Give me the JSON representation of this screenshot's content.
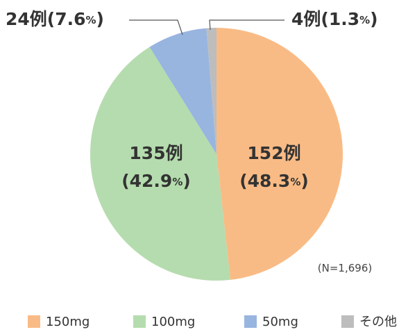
{
  "chart_data": {
    "type": "pie",
    "categories": [
      "150mg",
      "100mg",
      "50mg",
      "その他"
    ],
    "values": [
      152,
      135,
      24,
      4
    ],
    "value_labels": [
      "152例",
      "135例",
      "24例",
      "4例"
    ],
    "percents": [
      48.3,
      42.9,
      7.6,
      1.3
    ],
    "percent_labels": [
      "(48.3%)",
      "(42.9%)",
      "(7.6%)",
      "(1.3%)"
    ],
    "colors": [
      "#f9bb85",
      "#b5dcae",
      "#98b5e0",
      "#bdbdbd"
    ],
    "note": "(N=1,696)",
    "legend": "bottom"
  }
}
